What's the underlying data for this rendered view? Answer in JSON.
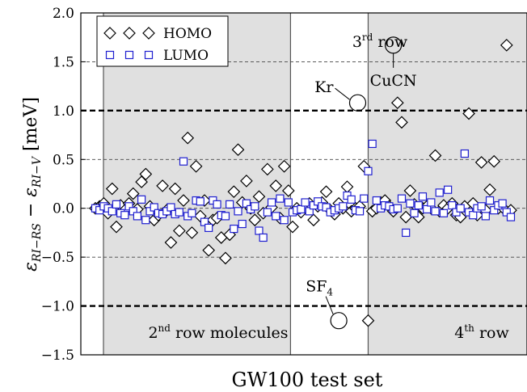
{
  "chart_data": {
    "type": "scatter",
    "title": "",
    "xlabel": "GW100 test set",
    "ylabel": {
      "prefix": "ε",
      "sub1": "RI−RS",
      "mid": " − ε",
      "sub2": "RI−V",
      "unit": " [meV]"
    },
    "ylim": [
      -1.5,
      2.0
    ],
    "xlim": [
      0,
      100
    ],
    "yticks": [
      -1.5,
      -1.0,
      -0.5,
      0.0,
      0.5,
      1.0,
      1.5,
      2.0
    ],
    "ytick_labels": [
      "−1.5",
      "−1.0",
      "−0.5",
      "0.0",
      "0.5",
      "1.0",
      "1.5",
      "2.0"
    ],
    "grid": {
      "dashed_minor": [
        -0.5,
        0.0,
        0.5,
        1.5,
        2.0
      ],
      "dashed_major": [
        -1.0,
        1.0
      ]
    },
    "legend": {
      "placement": "top-left",
      "entries": [
        {
          "label": "HOMO",
          "marker": "diamond",
          "color": "#000000"
        },
        {
          "label": "LUMO",
          "marker": "square",
          "color": "#1f1fd0"
        }
      ]
    },
    "regions": [
      {
        "x0": 1,
        "x1": 47.5,
        "label_main": "2",
        "label_sup": "nd",
        "label_rest": " row molecules",
        "shaded": true
      },
      {
        "x0": 47.5,
        "x1": 66,
        "label_main": "3",
        "label_sup": "rd",
        "label_rest": " row",
        "shaded": false
      },
      {
        "x0": 66,
        "x1": 100,
        "label_main": "4",
        "label_sup": "th",
        "label_rest": " row",
        "shaded": true
      }
    ],
    "annotations": [
      {
        "text": "Kr",
        "x": 63.5,
        "y": 1.08
      },
      {
        "text": "CuCN",
        "x": 72,
        "y": 1.67
      },
      {
        "text": "SF",
        "sub": "4",
        "x": 59,
        "y": -1.15
      }
    ],
    "series": [
      {
        "name": "HOMO",
        "marker": "diamond",
        "color": "#000000",
        "x": [
          1,
          2,
          3,
          4,
          5,
          6,
          7,
          8,
          9,
          10,
          11,
          12,
          13,
          14,
          15,
          16,
          17,
          18,
          19,
          20,
          21,
          22,
          23,
          24,
          25,
          26,
          27,
          28,
          29,
          30,
          31,
          32,
          33,
          34,
          35,
          36,
          37,
          38,
          39,
          40,
          41,
          42,
          43,
          44,
          45,
          46,
          47,
          48,
          49,
          50,
          51,
          52,
          53,
          54,
          55,
          56,
          57,
          58,
          59,
          60,
          61,
          62,
          63,
          64,
          65,
          66,
          67,
          68,
          69,
          70,
          71,
          72,
          73,
          74,
          75,
          76,
          77,
          78,
          79,
          80,
          81,
          82,
          83,
          84,
          85,
          86,
          87,
          88,
          89,
          90,
          91,
          92,
          93,
          94,
          95,
          96,
          97,
          98,
          99,
          100
        ],
        "y": [
          0.0,
          0.02,
          0.05,
          -0.05,
          0.2,
          -0.19,
          0.03,
          -0.02,
          0.05,
          0.15,
          -0.01,
          0.27,
          0.35,
          0.02,
          -0.12,
          -0.07,
          0.23,
          -0.02,
          -0.35,
          0.2,
          -0.23,
          0.08,
          0.72,
          -0.25,
          0.43,
          -0.08,
          0.08,
          -0.43,
          -0.12,
          -0.1,
          -0.3,
          -0.51,
          -0.27,
          0.17,
          0.6,
          0.06,
          0.28,
          0.0,
          -0.12,
          0.12,
          -0.05,
          0.4,
          0.01,
          0.23,
          -0.1,
          0.43,
          0.18,
          -0.19,
          0.0,
          -0.04,
          0.01,
          0.05,
          -0.12,
          0.02,
          0.06,
          0.17,
          -0.02,
          -0.06,
          0.05,
          0.0,
          0.22,
          -0.03,
          0.0,
          0.02,
          0.43,
          -1.15,
          -0.03,
          0.0,
          0.06,
          0.08,
          0.02,
          -0.03,
          1.08,
          0.88,
          -0.09,
          0.18,
          0.04,
          -0.09,
          0.0,
          0.02,
          0.0,
          0.54,
          -0.03,
          0.03,
          0.0,
          0.05,
          -0.07,
          -0.09,
          0.02,
          0.97,
          0.05,
          -0.07,
          0.47,
          -0.02,
          0.19,
          0.48,
          0.0,
          0.01,
          1.67,
          -0.02
        ]
      },
      {
        "name": "LUMO",
        "marker": "square",
        "color": "#1f1fd0",
        "x": [
          1,
          2,
          3,
          4,
          5,
          6,
          7,
          8,
          9,
          10,
          11,
          12,
          13,
          14,
          15,
          16,
          17,
          18,
          19,
          20,
          21,
          22,
          23,
          24,
          25,
          26,
          27,
          28,
          29,
          30,
          31,
          32,
          33,
          34,
          35,
          36,
          37,
          38,
          39,
          40,
          41,
          42,
          43,
          44,
          45,
          46,
          47,
          48,
          49,
          50,
          51,
          52,
          53,
          54,
          55,
          56,
          57,
          58,
          59,
          60,
          61,
          62,
          63,
          64,
          65,
          66,
          67,
          68,
          69,
          70,
          71,
          72,
          73,
          74,
          75,
          76,
          77,
          78,
          79,
          80,
          81,
          82,
          83,
          84,
          85,
          86,
          87,
          88,
          89,
          90,
          91,
          92,
          93,
          94,
          95,
          96,
          97,
          98,
          99,
          100
        ],
        "y": [
          0.0,
          -0.02,
          0.02,
          0.0,
          -0.03,
          0.04,
          -0.05,
          -0.07,
          0.02,
          -0.03,
          -0.08,
          0.09,
          -0.12,
          -0.03,
          0.01,
          -0.05,
          -0.06,
          -0.03,
          0.01,
          -0.06,
          -0.04,
          0.48,
          -0.08,
          -0.05,
          0.08,
          0.07,
          -0.14,
          -0.2,
          0.08,
          0.04,
          -0.07,
          -0.08,
          0.04,
          -0.21,
          -0.03,
          -0.16,
          0.05,
          -0.01,
          0.02,
          -0.23,
          -0.3,
          -0.04,
          0.06,
          -0.08,
          0.1,
          -0.12,
          0.06,
          -0.04,
          -0.02,
          -0.01,
          0.06,
          -0.03,
          0.03,
          0.07,
          0.02,
          0.01,
          -0.04,
          -0.02,
          0.0,
          0.02,
          0.13,
          0.09,
          -0.02,
          -0.03,
          0.1,
          0.38,
          0.66,
          0.08,
          0.0,
          0.03,
          0.02,
          -0.01,
          0.0,
          0.1,
          -0.25,
          0.05,
          -0.05,
          0.03,
          0.12,
          -0.01,
          0.06,
          -0.03,
          0.16,
          -0.05,
          0.19,
          0.03,
          -0.04,
          0.0,
          0.56,
          -0.04,
          -0.07,
          0.0,
          0.02,
          -0.08,
          0.08,
          -0.02,
          0.03,
          0.05,
          -0.04,
          -0.09
        ]
      }
    ]
  }
}
